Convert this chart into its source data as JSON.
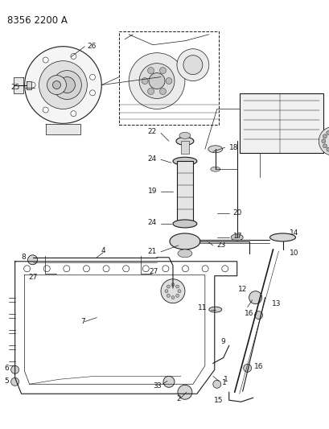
{
  "title": "8356 2200 A",
  "bg_color": "#ffffff",
  "line_color": "#1a1a1a",
  "title_fontsize": 8.5,
  "label_fontsize": 6.5,
  "fig_width": 4.1,
  "fig_height": 5.33,
  "dpi": 100
}
